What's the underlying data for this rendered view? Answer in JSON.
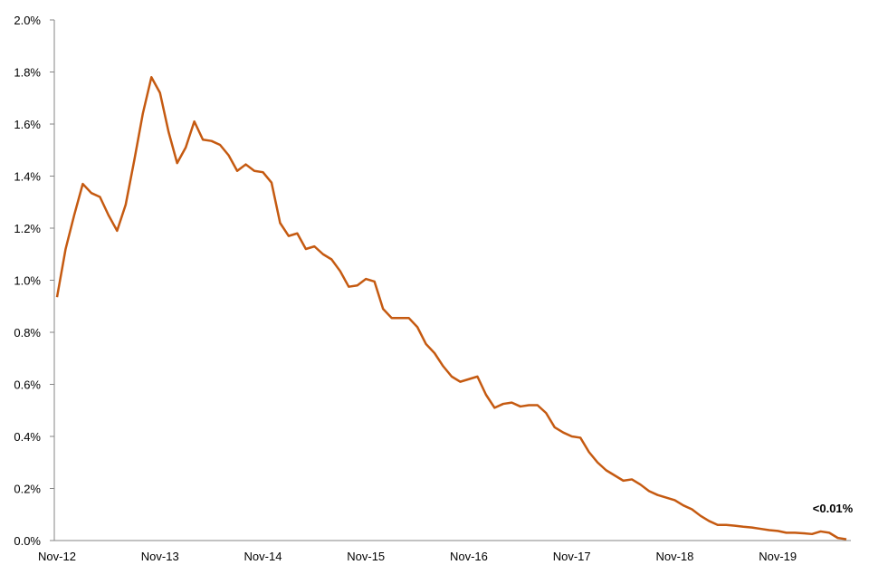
{
  "chart_data": {
    "type": "line",
    "color": "#c55a11",
    "annotation": "<0.01%",
    "categories": [
      "Nov-12",
      null,
      null,
      null,
      null,
      null,
      null,
      null,
      null,
      null,
      null,
      null,
      "Nov-13",
      null,
      null,
      null,
      null,
      null,
      null,
      null,
      null,
      null,
      null,
      null,
      "Nov-14",
      null,
      null,
      null,
      null,
      null,
      null,
      null,
      null,
      null,
      null,
      null,
      "Nov-15",
      null,
      null,
      null,
      null,
      null,
      null,
      null,
      null,
      null,
      null,
      null,
      "Nov-16",
      null,
      null,
      null,
      null,
      null,
      null,
      null,
      null,
      null,
      null,
      null,
      "Nov-17",
      null,
      null,
      null,
      null,
      null,
      null,
      null,
      null,
      null,
      null,
      null,
      "Nov-18",
      null,
      null,
      null,
      null,
      null,
      null,
      null,
      null,
      null,
      null,
      null,
      "Nov-19",
      null,
      null,
      null,
      null,
      null,
      null,
      null,
      null
    ],
    "values": [
      0.935,
      1.12,
      1.25,
      1.37,
      1.335,
      1.32,
      1.25,
      1.19,
      1.29,
      1.46,
      1.64,
      1.78,
      1.72,
      1.57,
      1.45,
      1.51,
      1.61,
      1.54,
      1.535,
      1.52,
      1.48,
      1.42,
      1.445,
      1.42,
      1.415,
      1.375,
      1.22,
      1.17,
      1.18,
      1.12,
      1.13,
      1.1,
      1.08,
      1.035,
      0.975,
      0.98,
      1.005,
      0.995,
      0.89,
      0.855,
      0.855,
      0.855,
      0.82,
      0.755,
      0.72,
      0.67,
      0.63,
      0.61,
      0.62,
      0.63,
      0.56,
      0.51,
      0.525,
      0.53,
      0.515,
      0.52,
      0.52,
      0.49,
      0.435,
      0.415,
      0.4,
      0.395,
      0.34,
      0.3,
      0.27,
      0.25,
      0.23,
      0.235,
      0.215,
      0.19,
      0.175,
      0.165,
      0.155,
      0.135,
      0.12,
      0.095,
      0.075,
      0.06,
      0.06,
      0.057,
      0.053,
      0.05,
      0.045,
      0.04,
      0.037,
      0.03,
      0.03,
      0.028,
      0.025,
      0.035,
      0.03,
      0.01,
      0.005
    ],
    "ylim": [
      0,
      2.0
    ],
    "yticks": [
      {
        "value": 0,
        "label": "0.0%"
      },
      {
        "value": 0.2,
        "label": "0.2%"
      },
      {
        "value": 0.4,
        "label": "0.4%"
      },
      {
        "value": 0.6,
        "label": "0.6%"
      },
      {
        "value": 0.8,
        "label": "0.8%"
      },
      {
        "value": 1.0,
        "label": "1.0%"
      },
      {
        "value": 1.2,
        "label": "1.2%"
      },
      {
        "value": 1.4,
        "label": "1.4%"
      },
      {
        "value": 1.6,
        "label": "1.6%"
      },
      {
        "value": 1.8,
        "label": "1.8%"
      },
      {
        "value": 2.0,
        "label": "2.0%"
      }
    ],
    "grid": false
  }
}
